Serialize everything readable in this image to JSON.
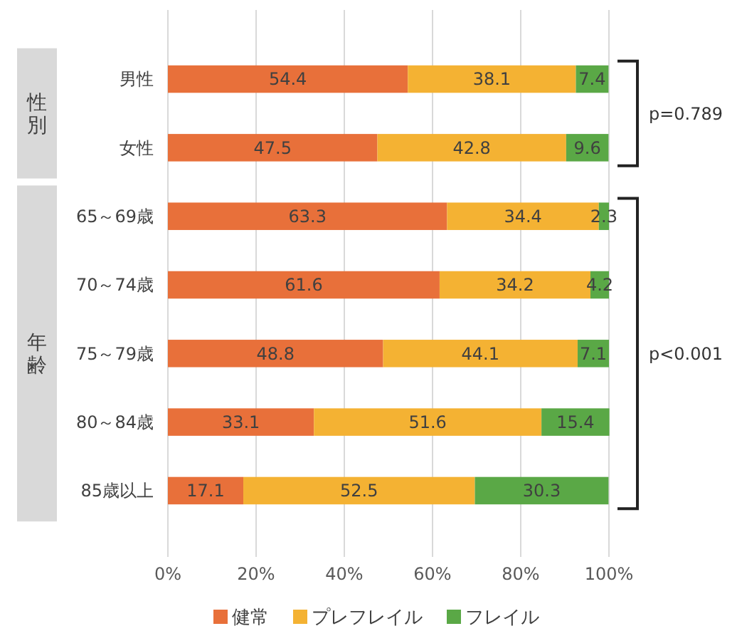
{
  "chart_data": {
    "type": "bar",
    "orientation": "horizontal",
    "stacked": true,
    "data_labels": true,
    "grid": "x",
    "legend": "bottom",
    "categories": [
      "男性",
      "女性",
      "65～69歳",
      "70～74歳",
      "75～79歳",
      "80～84歳",
      "85歳以上"
    ],
    "series": [
      {
        "name": "健常",
        "color": "#e8703a",
        "values": [
          54.4,
          47.5,
          63.3,
          61.6,
          48.8,
          33.1,
          17.1
        ]
      },
      {
        "name": "プレフレイル",
        "color": "#f4b233",
        "values": [
          38.1,
          42.8,
          34.4,
          34.2,
          44.1,
          51.6,
          52.5
        ]
      },
      {
        "name": "フレイル",
        "color": "#5aa846",
        "values": [
          7.4,
          9.6,
          2.3,
          4.2,
          7.1,
          15.4,
          30.3
        ]
      }
    ],
    "xlim": [
      0,
      100
    ],
    "xticks": [
      {
        "value": 0,
        "label": "0%"
      },
      {
        "value": 20,
        "label": "20%"
      },
      {
        "value": 40,
        "label": "40%"
      },
      {
        "value": 60,
        "label": "60%"
      },
      {
        "value": 80,
        "label": "80%"
      },
      {
        "value": 100,
        "label": "100%"
      }
    ],
    "annotations": [
      "性別",
      "年齢",
      "p=0.789",
      "p<0.001"
    ]
  }
}
